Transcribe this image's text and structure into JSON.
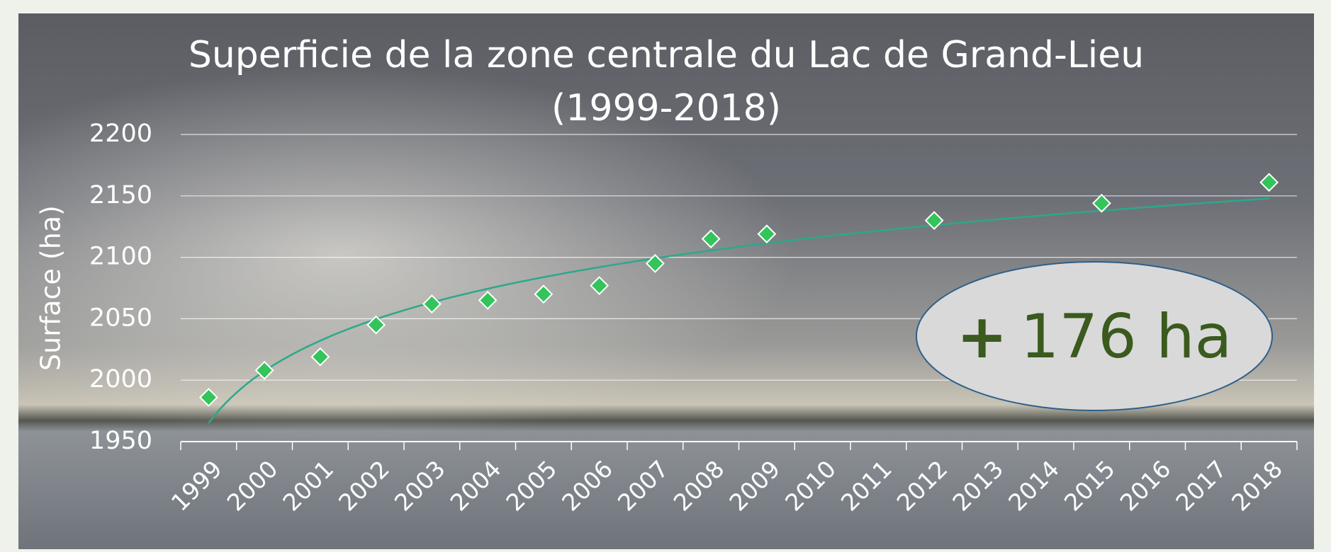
{
  "chart_data": {
    "type": "scatter",
    "title": [
      "Superficie de la zone centrale du Lac de Grand-Lieu",
      "(1999-2018)"
    ],
    "y_label": "Surface (ha)",
    "categories": [
      "1999",
      "2000",
      "2001",
      "2002",
      "2003",
      "2004",
      "2005",
      "2006",
      "2007",
      "2008",
      "2009",
      "2010",
      "2011",
      "2012",
      "2013",
      "2014",
      "2015",
      "2016",
      "2017",
      "2018"
    ],
    "series": [
      {
        "color": "#33c45a",
        "values": [
          1986,
          2008,
          2019,
          2045,
          2062,
          2065,
          2070,
          2077,
          2095,
          2115,
          2119,
          null,
          null,
          2130,
          null,
          null,
          2144,
          null,
          null,
          2161
        ]
      }
    ],
    "trendline": "logarithmic",
    "trendline_color": "#2aa98a",
    "ylim": [
      1950,
      2200
    ],
    "yticks": [
      1950,
      2000,
      2050,
      2100,
      2150,
      2200
    ],
    "grid": true,
    "annotation": {
      "sign": "+",
      "text": "176 ha"
    }
  }
}
